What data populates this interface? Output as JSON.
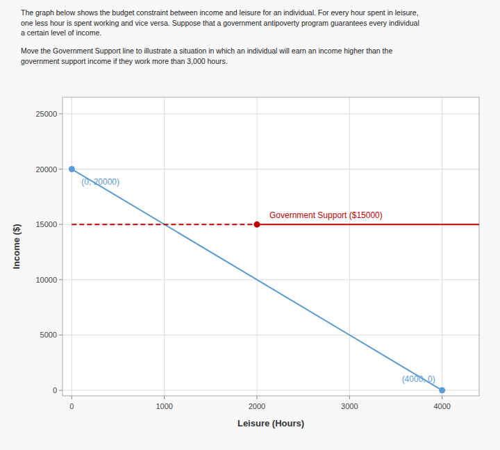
{
  "chart_data": {
    "type": "line",
    "title": "The graph below shows the budget constraint between income and leisure for an individual. For every hour spent in leisure,\none less hour is spent working and vice versa. Suppose that a government antipoverty program guarantees every individual\na certain level of income.",
    "subtitle": "Move the Government Support line to illustrate a situation in which an individual will earn an income higher than the\ngovernment support income if they work more than 3,000 hours.",
    "x_label": "Leisure (Hours)",
    "y_label": "Income ($)",
    "series": [
      {
        "type": "line",
        "x": [
          0,
          4000
        ],
        "values": [
          20000,
          0
        ],
        "color": "#5b9bd5",
        "marker": "o",
        "line_style": "solid"
      },
      {
        "type": "line",
        "x": [
          0,
          2000
        ],
        "values": [
          15000,
          15000
        ],
        "color": "#c00000",
        "line_style": "dashed"
      },
      {
        "type": "line",
        "x": [
          2000,
          4400
        ],
        "values": [
          15000,
          15000
        ],
        "color": "#c00000",
        "line_style": "solid"
      },
      {
        "type": "scatter",
        "x": [
          2000
        ],
        "values": [
          15000
        ],
        "color": "#c00000",
        "marker": "o"
      }
    ],
    "annotations": [
      {
        "text": "(0, 20000)",
        "x": 0,
        "y": 20000,
        "color": "#5b9bd5"
      },
      {
        "text": "(4000, 0)",
        "x": 4000,
        "y": 0,
        "color": "#5b9bd5"
      },
      {
        "text": "Government Support ($15000)",
        "x": 2000,
        "y": 15000,
        "color": "#c00000"
      }
    ],
    "xlim": [
      -100,
      4400
    ],
    "ylim": [
      -500,
      26500
    ],
    "xticks": [
      0,
      1000,
      2000,
      3000,
      4000
    ],
    "yticks": [
      0,
      5000,
      10000,
      15000,
      20000,
      25000
    ],
    "grid": true
  }
}
